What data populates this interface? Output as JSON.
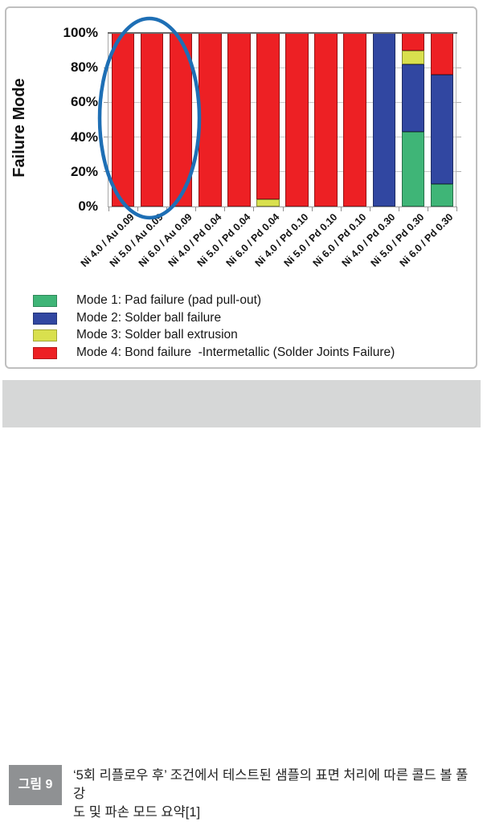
{
  "chart": {
    "y_axis_title": "Failure Mode",
    "y_ticks": [
      "100%",
      "80%",
      "60%",
      "40%",
      "20%",
      "0%"
    ]
  },
  "chart_data": {
    "type": "bar",
    "stacked": true,
    "title": "",
    "xlabel": "",
    "ylabel": "Failure Mode",
    "ylim": [
      0,
      100
    ],
    "y_tick_labels": [
      "0%",
      "20%",
      "40%",
      "60%",
      "80%",
      "100%"
    ],
    "grid": true,
    "legend_position": "bottom-left",
    "categories": [
      "Ni 4.0 / Au 0.09",
      "Ni 5.0 / Au 0.09",
      "Ni 6.0 / Au 0.09",
      "Ni 4.0 / Pd 0.04",
      "Ni 5.0 / Pd 0.04",
      "Ni 6.0 / Pd 0.04",
      "Ni 4.0 / Pd 0.10",
      "Ni 5.0 / Pd 0.10",
      "Ni 6.0 / Pd 0.10",
      "Ni 4.0 / Pd 0.30",
      "Ni 5.0 / Pd 0.30",
      "Ni 6.0 / Pd 0.30"
    ],
    "series": [
      {
        "name": "Mode 1: Pad failure (pad pull-out)",
        "color": "#3FB577",
        "values": [
          0,
          0,
          0,
          0,
          0,
          0,
          0,
          0,
          0,
          0,
          43,
          13
        ]
      },
      {
        "name": "Mode 2: Solder ball failure",
        "color": "#3147A1",
        "values": [
          0,
          0,
          0,
          0,
          0,
          0,
          0,
          0,
          0,
          100,
          39,
          63
        ]
      },
      {
        "name": "Mode 3: Solder ball extrusion",
        "color": "#D9E04E",
        "values": [
          0,
          0,
          0,
          0,
          0,
          4,
          0,
          0,
          0,
          0,
          8,
          0
        ]
      },
      {
        "name": "Mode 4: Bond failure  -Intermetallic (Solder Joints Failure)",
        "color": "#ED2024",
        "values": [
          100,
          100,
          100,
          100,
          100,
          96,
          100,
          100,
          100,
          0,
          10,
          24
        ]
      }
    ],
    "highlight": {
      "shape": "ellipse",
      "color": "#1E6FB5",
      "covers": "first three bars (Ni / Au finishes)"
    }
  },
  "caption": {
    "label": "그림 9",
    "line1": "‘5회 리플로우 후’ 조건에서 테스트된 샘플의 표면 처리에 따른 콜드 볼 풀 강",
    "line2": "도 및 파손 모드 요약[1]"
  }
}
